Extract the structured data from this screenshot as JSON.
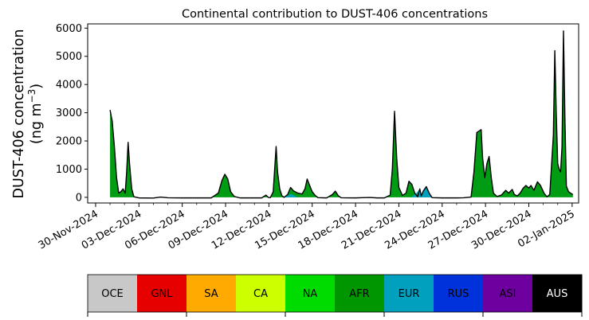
{
  "chart_data": {
    "type": "area",
    "title": "Continental contribution to DUST-406 concentrations",
    "ylabel_line1": "DUST-406 concentration",
    "ylabel_line2": "(ng m",
    "ylabel_unit_exp": "−3",
    "ylabel_line2_end": ")",
    "xlabel": "",
    "ylim": [
      -200,
      6150
    ],
    "yticks": [
      0,
      1000,
      2000,
      3000,
      4000,
      5000,
      6000
    ],
    "xlim_days": [
      -0.55,
      33.45
    ],
    "x_origin_date": "30-Nov-2024",
    "xticks": [
      {
        "day": 0,
        "label": "30-Nov-2024"
      },
      {
        "day": 3,
        "label": "03-Dec-2024"
      },
      {
        "day": 6,
        "label": "06-Dec-2024"
      },
      {
        "day": 9,
        "label": "09-Dec-2024"
      },
      {
        "day": 12,
        "label": "12-Dec-2024"
      },
      {
        "day": 15,
        "label": "15-Dec-2024"
      },
      {
        "day": 18,
        "label": "18-Dec-2024"
      },
      {
        "day": 21,
        "label": "21-Dec-2024"
      },
      {
        "day": 24,
        "label": "24-Dec-2024"
      },
      {
        "day": 27,
        "label": "27-Dec-2024"
      },
      {
        "day": 30,
        "label": "30-Dec-2024"
      },
      {
        "day": 33,
        "label": "02-Jan-2025"
      }
    ],
    "total_series": {
      "name": "",
      "points": [
        [
          1.0,
          3100
        ],
        [
          1.15,
          2700
        ],
        [
          1.3,
          1800
        ],
        [
          1.45,
          700
        ],
        [
          1.6,
          150
        ],
        [
          1.75,
          200
        ],
        [
          1.9,
          300
        ],
        [
          2.05,
          150
        ],
        [
          2.15,
          900
        ],
        [
          2.25,
          1950
        ],
        [
          2.35,
          1200
        ],
        [
          2.5,
          300
        ],
        [
          2.65,
          20
        ],
        [
          3.0,
          -20
        ],
        [
          4.0,
          -25
        ],
        [
          4.5,
          10
        ],
        [
          5.0,
          -15
        ],
        [
          6.0,
          -20
        ],
        [
          8.0,
          -20
        ],
        [
          8.5,
          150
        ],
        [
          8.75,
          600
        ],
        [
          8.95,
          820
        ],
        [
          9.15,
          650
        ],
        [
          9.35,
          200
        ],
        [
          9.6,
          30
        ],
        [
          10.0,
          -20
        ],
        [
          11.5,
          -20
        ],
        [
          11.8,
          80
        ],
        [
          11.95,
          0
        ],
        [
          12.1,
          -10
        ],
        [
          12.3,
          200
        ],
        [
          12.5,
          1800
        ],
        [
          12.6,
          900
        ],
        [
          12.75,
          300
        ],
        [
          12.9,
          60
        ],
        [
          13.05,
          0
        ],
        [
          13.3,
          100
        ],
        [
          13.5,
          350
        ],
        [
          13.7,
          230
        ],
        [
          14.0,
          150
        ],
        [
          14.3,
          120
        ],
        [
          14.5,
          300
        ],
        [
          14.65,
          650
        ],
        [
          14.8,
          450
        ],
        [
          15.0,
          200
        ],
        [
          15.2,
          70
        ],
        [
          15.4,
          -10
        ],
        [
          16.0,
          -20
        ],
        [
          16.4,
          100
        ],
        [
          16.6,
          220
        ],
        [
          16.8,
          60
        ],
        [
          17.0,
          -15
        ],
        [
          18.0,
          -20
        ],
        [
          18.5,
          -10
        ],
        [
          19.0,
          -5
        ],
        [
          19.5,
          -20
        ],
        [
          20.0,
          -20
        ],
        [
          20.4,
          80
        ],
        [
          20.55,
          1000
        ],
        [
          20.7,
          3050
        ],
        [
          20.85,
          1400
        ],
        [
          21.0,
          350
        ],
        [
          21.25,
          70
        ],
        [
          21.5,
          150
        ],
        [
          21.7,
          570
        ],
        [
          21.9,
          460
        ],
        [
          22.1,
          150
        ],
        [
          22.3,
          20
        ],
        [
          22.45,
          300
        ],
        [
          22.55,
          50
        ],
        [
          22.7,
          230
        ],
        [
          22.9,
          380
        ],
        [
          23.1,
          150
        ],
        [
          23.3,
          -10
        ],
        [
          24.0,
          -20
        ],
        [
          25.0,
          -20
        ],
        [
          25.5,
          -15
        ],
        [
          26.0,
          10
        ],
        [
          26.2,
          900
        ],
        [
          26.4,
          2300
        ],
        [
          26.55,
          2350
        ],
        [
          26.7,
          2400
        ],
        [
          26.8,
          1400
        ],
        [
          26.95,
          700
        ],
        [
          27.1,
          1200
        ],
        [
          27.25,
          1450
        ],
        [
          27.4,
          700
        ],
        [
          27.55,
          150
        ],
        [
          27.8,
          30
        ],
        [
          28.1,
          80
        ],
        [
          28.4,
          250
        ],
        [
          28.6,
          150
        ],
        [
          28.85,
          280
        ],
        [
          29.0,
          100
        ],
        [
          29.2,
          50
        ],
        [
          29.4,
          150
        ],
        [
          29.6,
          320
        ],
        [
          29.8,
          420
        ],
        [
          30.0,
          330
        ],
        [
          30.15,
          420
        ],
        [
          30.35,
          250
        ],
        [
          30.6,
          550
        ],
        [
          30.8,
          430
        ],
        [
          31.05,
          150
        ],
        [
          31.25,
          20
        ],
        [
          31.45,
          100
        ],
        [
          31.7,
          2200
        ],
        [
          31.8,
          5200
        ],
        [
          31.9,
          3000
        ],
        [
          32.0,
          1200
        ],
        [
          32.1,
          1000
        ],
        [
          32.2,
          900
        ],
        [
          32.3,
          1800
        ],
        [
          32.4,
          5900
        ],
        [
          32.5,
          2800
        ],
        [
          32.6,
          400
        ],
        [
          32.75,
          200
        ],
        [
          32.95,
          130
        ],
        [
          33.05,
          100
        ]
      ]
    },
    "eur_patches": [
      {
        "name": "EUR",
        "points": [
          [
            21.85,
            0
          ],
          [
            22.2,
            140
          ],
          [
            22.45,
            300
          ],
          [
            22.55,
            60
          ],
          [
            22.7,
            240
          ],
          [
            22.9,
            380
          ],
          [
            23.1,
            160
          ],
          [
            23.3,
            0
          ]
        ]
      },
      {
        "name": "EUR",
        "points": [
          [
            13.05,
            0
          ],
          [
            13.3,
            60
          ],
          [
            13.5,
            120
          ],
          [
            13.7,
            80
          ],
          [
            14.0,
            0
          ]
        ]
      }
    ],
    "legend": {
      "placement": "bottom",
      "entries": [
        {
          "label": "OCE",
          "color": "#c8c8c8",
          "text_color": "#000000"
        },
        {
          "label": "GNL",
          "color": "#e60000",
          "text_color": "#000000"
        },
        {
          "label": "SA",
          "color": "#ffaa00",
          "text_color": "#000000"
        },
        {
          "label": "CA",
          "color": "#ccff00",
          "text_color": "#000000"
        },
        {
          "label": "NA",
          "color": "#00dc00",
          "text_color": "#000000"
        },
        {
          "label": "AFR",
          "color": "#009600",
          "text_color": "#000000"
        },
        {
          "label": "EUR",
          "color": "#00a0be",
          "text_color": "#000000"
        },
        {
          "label": "RUS",
          "color": "#0032dc",
          "text_color": "#000000"
        },
        {
          "label": "ASI",
          "color": "#6e00a0",
          "text_color": "#000000"
        },
        {
          "label": "AUS",
          "color": "#000000",
          "text_color": "#ffffff"
        }
      ]
    },
    "colors": {
      "afr_fill": "#009c14",
      "outline": "#000000"
    },
    "grid": false
  }
}
